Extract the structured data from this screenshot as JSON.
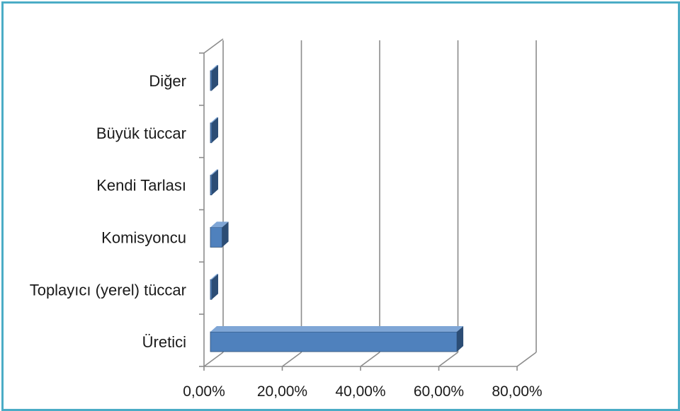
{
  "chart_data": {
    "type": "bar",
    "orientation": "horizontal",
    "style": "3d",
    "categories": [
      "Üretici",
      "Toplayıcı (yerel) tüccar",
      "Komisyoncu",
      "Kendi Tarlası",
      "Büyük tüccar",
      "Diğer"
    ],
    "values": [
      0.63,
      0.0,
      0.03,
      0.0,
      0.0,
      0.0
    ],
    "xlim": [
      0,
      0.8
    ],
    "x_ticks": [
      "0,00%",
      "20,00%",
      "40,00%",
      "60,00%",
      "80,00%"
    ],
    "grid": true,
    "legend": "none",
    "colors": {
      "bar_front": "#4f81bd",
      "bar_side": "#2c4d75",
      "bar_top": "#7fa6d6",
      "frame_border": "#4bacc6",
      "grid": "#8c8c8c"
    }
  }
}
